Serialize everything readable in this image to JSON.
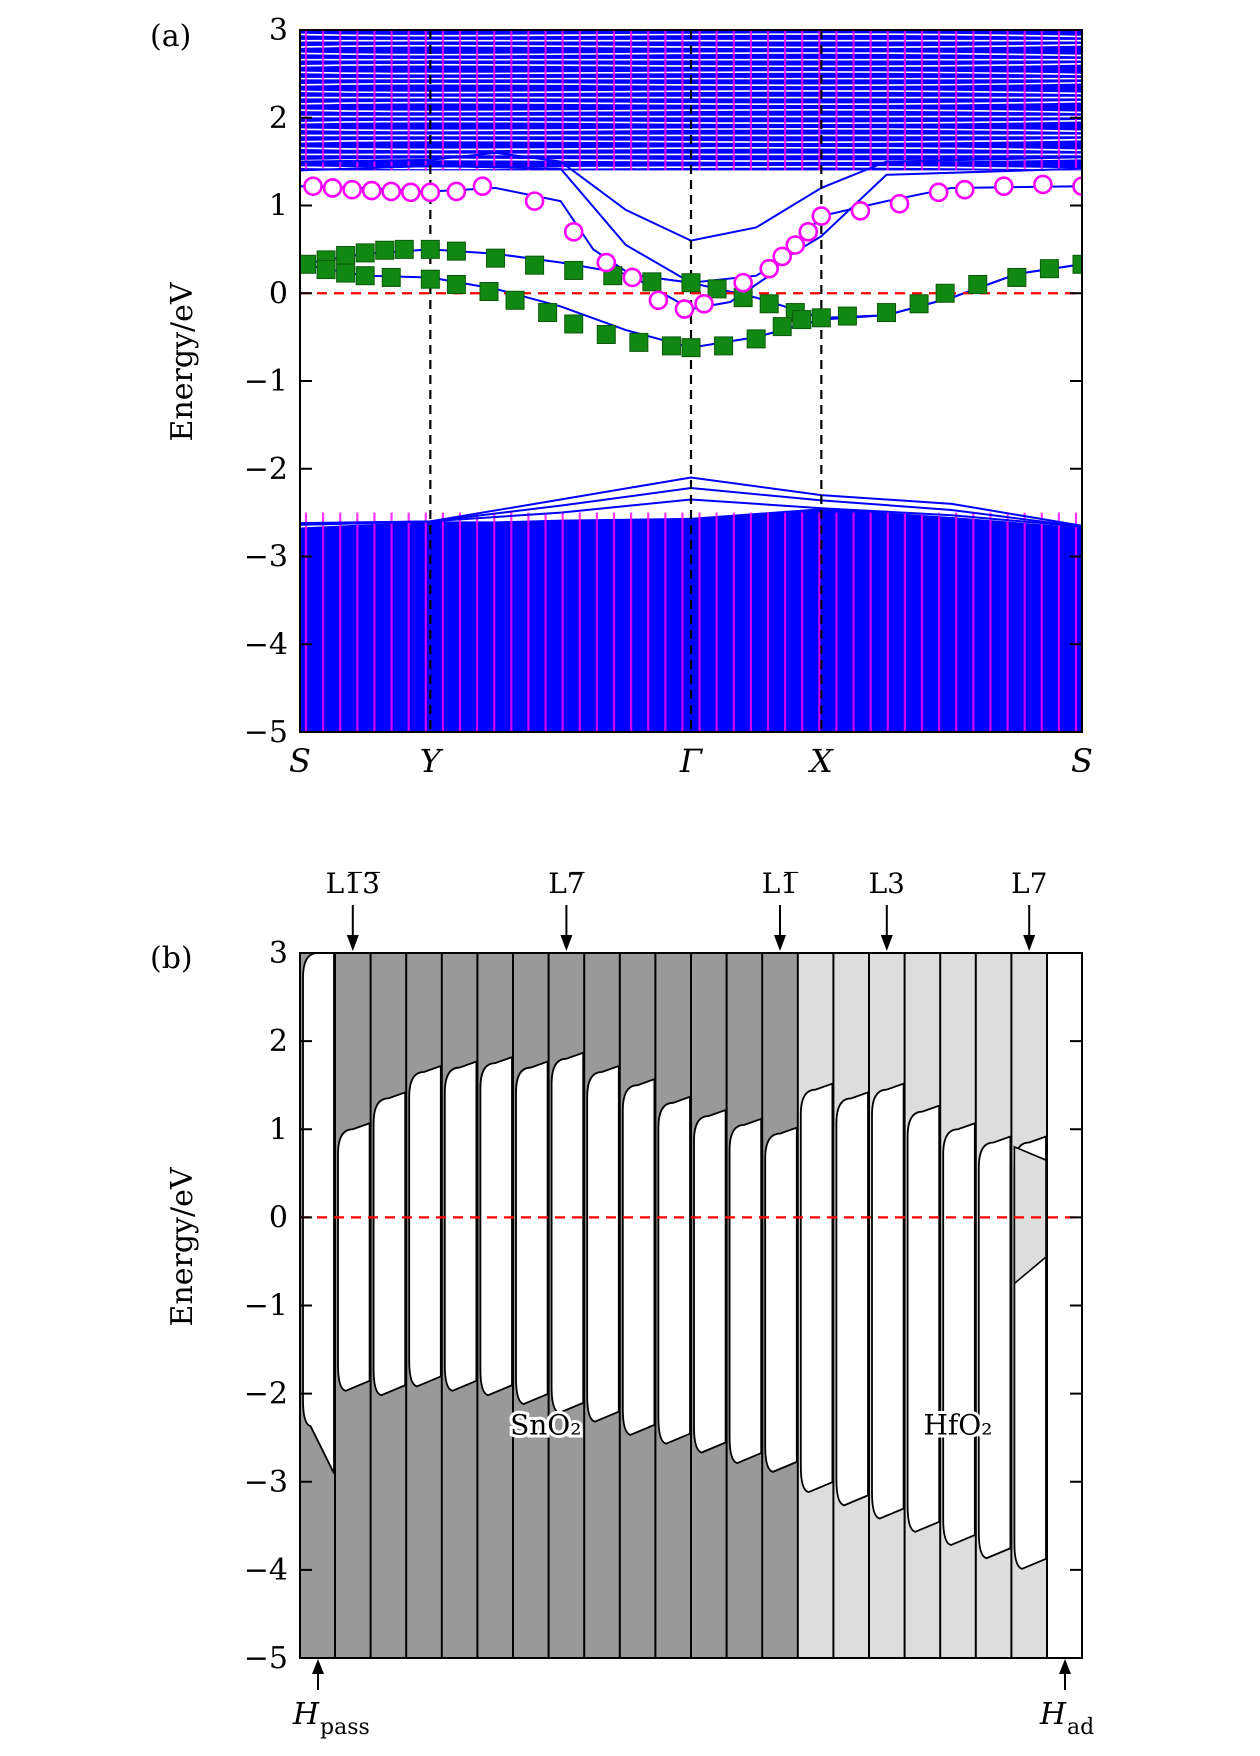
{
  "chart_data": [
    {
      "type": "line",
      "panel_label": "(a)",
      "ylabel": "Energy/eV",
      "ylim": [
        -5,
        3
      ],
      "yticks": [
        3,
        2,
        1,
        0,
        -1,
        -2,
        -3,
        -4,
        -5
      ],
      "ytick_labels": [
        "3",
        "2",
        "1",
        "0",
        "−1",
        "−2",
        "−3",
        "−4",
        "−5"
      ],
      "xlim": [
        0,
        6
      ],
      "kpoints": [
        {
          "label": "S",
          "x": 0
        },
        {
          "label": "Y",
          "x": 1
        },
        {
          "label": "Γ",
          "x": 3
        },
        {
          "label": "X",
          "x": 4
        },
        {
          "label": "S",
          "x": 6
        }
      ],
      "fermi_level": 0,
      "colors": {
        "bands": "#0000ff",
        "bulk_projection": "#ff00ff",
        "circles": "#ff00ff",
        "squares": "#118811",
        "fermi": "#ff0000"
      },
      "bulk_valence_top": [
        [
          0,
          -2.67
        ],
        [
          1,
          -2.6
        ],
        [
          1.5,
          -2.6
        ],
        [
          2,
          -2.58
        ],
        [
          3,
          -2.56
        ],
        [
          4,
          -2.45
        ],
        [
          5,
          -2.55
        ],
        [
          6,
          -2.67
        ]
      ],
      "conduction_continuum_bottom": 1.4,
      "bands": [
        {
          "name": "",
          "points": [
            [
              0,
              1.22
            ],
            [
              0.5,
              1.2
            ],
            [
              1,
              1.16
            ],
            [
              1.5,
              1.2
            ],
            [
              2,
              1.05
            ],
            [
              2.25,
              0.5
            ],
            [
              2.6,
              0.15
            ],
            [
              3,
              -0.18
            ],
            [
              3.3,
              -0.1
            ],
            [
              3.6,
              0.2
            ],
            [
              4,
              0.88
            ],
            [
              4.5,
              1.05
            ],
            [
              5,
              1.2
            ],
            [
              6,
              1.22
            ]
          ]
        },
        {
          "name": "",
          "points": [
            [
              0,
              0.33
            ],
            [
              0.5,
              0.45
            ],
            [
              1,
              0.5
            ],
            [
              1.5,
              0.45
            ],
            [
              2,
              0.35
            ],
            [
              2.5,
              0.22
            ],
            [
              3,
              0.12
            ],
            [
              3.5,
              -0.05
            ],
            [
              4,
              -0.28
            ],
            [
              4.5,
              -0.25
            ],
            [
              5,
              -0.05
            ],
            [
              5.5,
              0.22
            ],
            [
              6,
              0.33
            ]
          ]
        },
        {
          "name": "",
          "points": [
            [
              0,
              0.33
            ],
            [
              0.5,
              0.2
            ],
            [
              1,
              0.18
            ],
            [
              1.5,
              0.05
            ],
            [
              2,
              -0.15
            ],
            [
              2.5,
              -0.42
            ],
            [
              3,
              -0.62
            ],
            [
              3.5,
              -0.5
            ],
            [
              4,
              -0.3
            ],
            [
              4.5,
              -0.25
            ],
            [
              5,
              -0.05
            ],
            [
              5.5,
              0.22
            ],
            [
              6,
              0.33
            ]
          ]
        },
        {
          "name": "",
          "points": [
            [
              0,
              1.4
            ],
            [
              1,
              1.45
            ],
            [
              2,
              1.42
            ],
            [
              2.5,
              0.55
            ],
            [
              3,
              0.12
            ],
            [
              3.5,
              0.2
            ],
            [
              4,
              0.65
            ],
            [
              4.5,
              1.35
            ],
            [
              6,
              1.42
            ]
          ]
        },
        {
          "name": "",
          "points": [
            [
              0,
              1.5
            ],
            [
              1,
              1.52
            ],
            [
              1.5,
              1.6
            ],
            [
              2,
              1.5
            ],
            [
              2.5,
              0.95
            ],
            [
              3,
              0.6
            ],
            [
              3.5,
              0.75
            ],
            [
              4,
              1.2
            ],
            [
              4.5,
              1.5
            ],
            [
              6,
              1.55
            ]
          ]
        },
        {
          "name": "",
          "points": [
            [
              0,
              -2.62
            ],
            [
              1,
              -2.6
            ],
            [
              2,
              -2.35
            ],
            [
              3,
              -2.1
            ],
            [
              4,
              -2.3
            ],
            [
              5,
              -2.4
            ],
            [
              6,
              -2.65
            ]
          ]
        },
        {
          "name": "",
          "points": [
            [
              0,
              -2.63
            ],
            [
              1,
              -2.6
            ],
            [
              2,
              -2.42
            ],
            [
              3,
              -2.22
            ],
            [
              4,
              -2.36
            ],
            [
              5,
              -2.47
            ],
            [
              6,
              -2.66
            ]
          ]
        },
        {
          "name": "",
          "points": [
            [
              0,
              -2.64
            ],
            [
              1,
              -2.6
            ],
            [
              2,
              -2.5
            ],
            [
              3,
              -2.35
            ],
            [
              4,
              -2.45
            ],
            [
              5,
              -2.53
            ],
            [
              6,
              -2.66
            ]
          ]
        }
      ],
      "circle_points": [
        [
          0.1,
          1.22
        ],
        [
          0.25,
          1.2
        ],
        [
          0.4,
          1.18
        ],
        [
          0.55,
          1.17
        ],
        [
          0.7,
          1.16
        ],
        [
          0.85,
          1.15
        ],
        [
          1,
          1.15
        ],
        [
          1.2,
          1.16
        ],
        [
          1.4,
          1.22
        ],
        [
          1.8,
          1.05
        ],
        [
          2.1,
          0.7
        ],
        [
          2.35,
          0.35
        ],
        [
          2.55,
          0.18
        ],
        [
          2.75,
          -0.08
        ],
        [
          2.95,
          -0.18
        ],
        [
          3.1,
          -0.12
        ],
        [
          3.4,
          0.12
        ],
        [
          3.6,
          0.28
        ],
        [
          3.7,
          0.42
        ],
        [
          3.8,
          0.55
        ],
        [
          3.9,
          0.7
        ],
        [
          4,
          0.88
        ],
        [
          4.3,
          0.94
        ],
        [
          4.6,
          1.02
        ],
        [
          4.9,
          1.15
        ],
        [
          5.1,
          1.18
        ],
        [
          5.4,
          1.22
        ],
        [
          5.7,
          1.24
        ],
        [
          6,
          1.22
        ]
      ],
      "square_points": [
        [
          0.05,
          0.33
        ],
        [
          0.2,
          0.38
        ],
        [
          0.35,
          0.43
        ],
        [
          0.5,
          0.46
        ],
        [
          0.65,
          0.49
        ],
        [
          0.8,
          0.5
        ],
        [
          1,
          0.5
        ],
        [
          1.2,
          0.48
        ],
        [
          1.5,
          0.4
        ],
        [
          1.8,
          0.32
        ],
        [
          2.1,
          0.26
        ],
        [
          2.4,
          0.2
        ],
        [
          2.7,
          0.13
        ],
        [
          3,
          0.12
        ],
        [
          3.2,
          0.05
        ],
        [
          3.4,
          -0.05
        ],
        [
          3.6,
          -0.12
        ],
        [
          3.8,
          -0.22
        ],
        [
          4,
          -0.28
        ],
        [
          0.2,
          0.27
        ],
        [
          0.35,
          0.23
        ],
        [
          0.5,
          0.2
        ],
        [
          0.7,
          0.18
        ],
        [
          1,
          0.16
        ],
        [
          1.2,
          0.1
        ],
        [
          1.45,
          0.02
        ],
        [
          1.65,
          -0.08
        ],
        [
          1.9,
          -0.22
        ],
        [
          2.1,
          -0.35
        ],
        [
          2.35,
          -0.47
        ],
        [
          2.6,
          -0.56
        ],
        [
          2.85,
          -0.6
        ],
        [
          3,
          -0.62
        ],
        [
          3.25,
          -0.6
        ],
        [
          3.5,
          -0.52
        ],
        [
          3.7,
          -0.38
        ],
        [
          3.85,
          -0.3
        ],
        [
          4.2,
          -0.26
        ],
        [
          4.5,
          -0.22
        ],
        [
          4.75,
          -0.12
        ],
        [
          4.95,
          0.0
        ],
        [
          5.2,
          0.1
        ],
        [
          5.5,
          0.18
        ],
        [
          5.75,
          0.28
        ],
        [
          6,
          0.33
        ]
      ]
    },
    {
      "type": "area",
      "panel_label": "(b)",
      "ylabel": "Energy/eV",
      "ylim": [
        -5,
        3
      ],
      "yticks": [
        3,
        2,
        1,
        0,
        -1,
        -2,
        -3,
        -4,
        -5
      ],
      "ytick_labels": [
        "3",
        "2",
        "1",
        "0",
        "−1",
        "−2",
        "−3",
        "−4",
        "−5"
      ],
      "fermi_level": 0,
      "layer_labels": [
        {
          "text": "L1̅3̅",
          "layer": 1
        },
        {
          "text": "L7̅",
          "layer": 7
        },
        {
          "text": "L1̅",
          "layer": 13
        },
        {
          "text": "L3",
          "layer": 16
        },
        {
          "text": "L7",
          "layer": 20
        }
      ],
      "materials": [
        {
          "text": "SnO₂",
          "layer": 6
        },
        {
          "text": "HfO₂",
          "layer": 18
        }
      ],
      "h_labels": [
        {
          "main": "H",
          "sub": "pass"
        },
        {
          "main": "H",
          "sub": "ad"
        }
      ],
      "colors": {
        "sno2": "#999999",
        "hfo2": "#dddddd",
        "gap": "#ffffff",
        "fermi": "#ff0000"
      },
      "layers": [
        {
          "material": "none",
          "vbm": -2.3,
          "vbm_end": -2.95,
          "cbm": 3.0
        },
        {
          "material": "SnO2",
          "vbm": -1.9,
          "cbm": 1.0
        },
        {
          "material": "SnO2",
          "vbm": -1.95,
          "cbm": 1.35
        },
        {
          "material": "SnO2",
          "vbm": -1.85,
          "cbm": 1.65
        },
        {
          "material": "SnO2",
          "vbm": -1.9,
          "cbm": 1.7
        },
        {
          "material": "SnO2",
          "vbm": -1.95,
          "cbm": 1.75
        },
        {
          "material": "SnO2",
          "vbm": -2.05,
          "cbm": 1.7
        },
        {
          "material": "SnO2",
          "vbm": -2.15,
          "cbm": 1.8
        },
        {
          "material": "SnO2",
          "vbm": -2.25,
          "cbm": 1.65
        },
        {
          "material": "SnO2",
          "vbm": -2.4,
          "cbm": 1.5
        },
        {
          "material": "SnO2",
          "vbm": -2.5,
          "cbm": 1.3
        },
        {
          "material": "SnO2",
          "vbm": -2.6,
          "cbm": 1.15
        },
        {
          "material": "SnO2",
          "vbm": -2.72,
          "cbm": 1.05
        },
        {
          "material": "SnO2",
          "vbm": -2.82,
          "cbm": 0.95
        },
        {
          "material": "HfO2",
          "vbm": -3.05,
          "cbm": 1.45
        },
        {
          "material": "HfO2",
          "vbm": -3.2,
          "cbm": 1.35
        },
        {
          "material": "HfO2",
          "vbm": -3.35,
          "cbm": 1.45
        },
        {
          "material": "HfO2",
          "vbm": -3.5,
          "cbm": 1.2
        },
        {
          "material": "HfO2",
          "vbm": -3.65,
          "cbm": 1.0
        },
        {
          "material": "HfO2",
          "vbm": -3.8,
          "cbm": 0.85
        },
        {
          "material": "HfO2",
          "vbm": -3.92,
          "cbm": 0.85,
          "gap_island": [
            -0.75,
            0.65
          ]
        },
        {
          "material": "none",
          "vbm": -5.0,
          "cbm": 3.0
        }
      ]
    }
  ]
}
